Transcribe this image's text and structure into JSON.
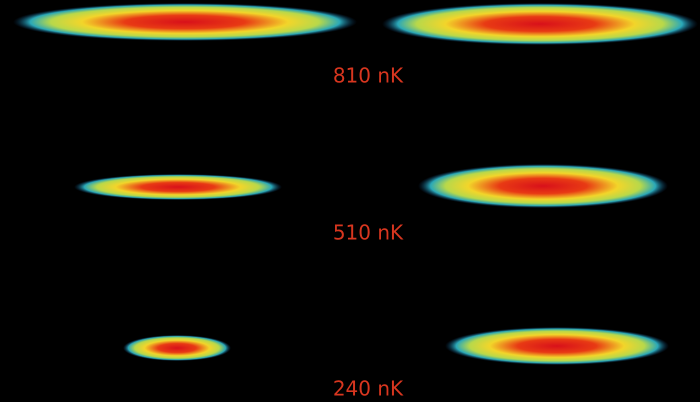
{
  "labels": [
    "810 nK",
    "510 nK",
    "240 nK"
  ]
}
